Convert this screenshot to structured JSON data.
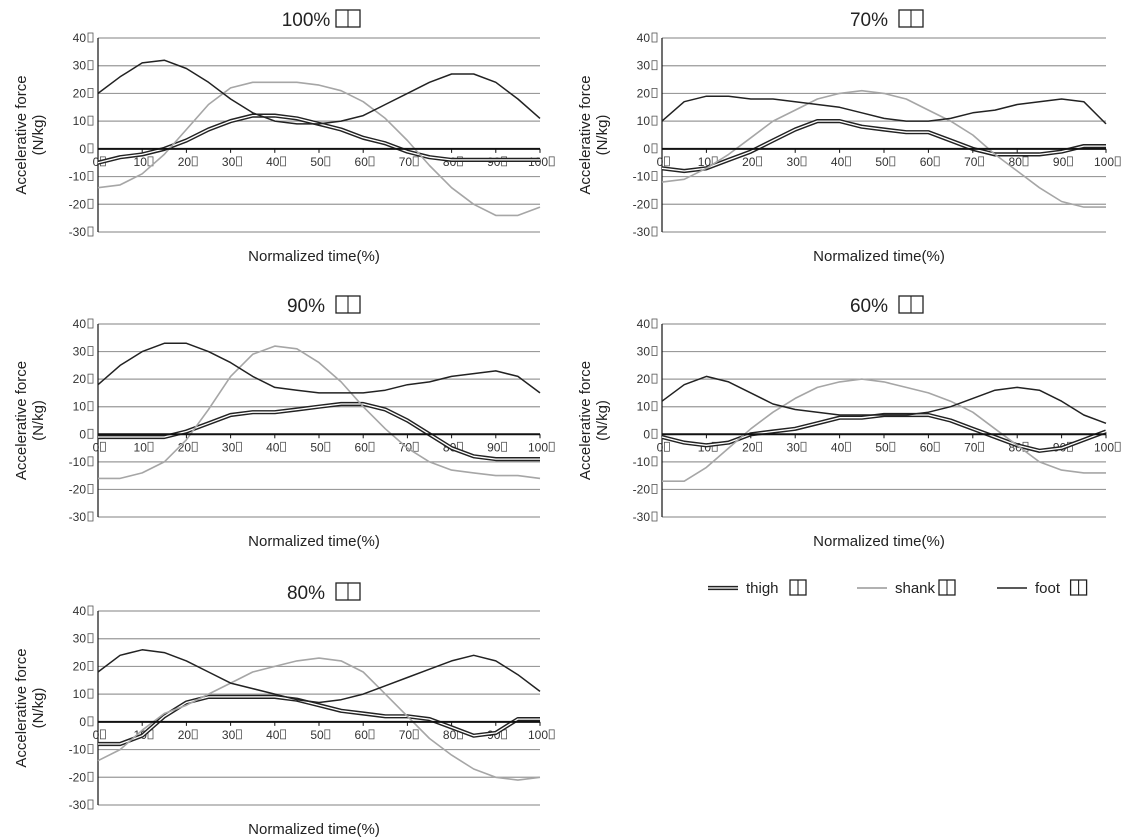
{
  "figure": {
    "legend": [
      {
        "key": "thigh",
        "label": "thigh",
        "style": "double"
      },
      {
        "key": "shank",
        "label": "shank",
        "style": "gray"
      },
      {
        "key": "foot",
        "label": "foot",
        "style": "black"
      }
    ],
    "colors": {
      "thigh": "#222222",
      "shank": "#a6a6a6",
      "foot": "#222222",
      "grid": "#9a9a9a",
      "axis": "#111111"
    }
  },
  "chart_data": [
    {
      "type": "line",
      "title": "100%",
      "xlabel": "Normalized time(%)",
      "ylabel": [
        "Accelerative force",
        "(N/kg)"
      ],
      "ylim": [
        -30,
        40
      ],
      "xlim": [
        0,
        100
      ],
      "yticks": [
        "40",
        "30",
        "20",
        "10",
        "0",
        "-10",
        "-20",
        "-30"
      ],
      "xticks": [
        "0",
        "10",
        "20",
        "30",
        "40",
        "50",
        "60",
        "70",
        "80",
        "90",
        "100"
      ],
      "x": [
        0,
        5,
        10,
        15,
        20,
        25,
        30,
        35,
        40,
        45,
        50,
        55,
        60,
        65,
        70,
        75,
        80,
        85,
        90,
        95,
        100
      ],
      "series": [
        {
          "name": "thigh",
          "values": [
            -5,
            -3,
            -2,
            0,
            3,
            7,
            10,
            12,
            12,
            11,
            9,
            7,
            4,
            2,
            -1,
            -3,
            -4,
            -4,
            -4,
            -4,
            -4
          ]
        },
        {
          "name": "shank",
          "values": [
            -14,
            -13,
            -9,
            -2,
            7,
            16,
            22,
            24,
            24,
            24,
            23,
            21,
            17,
            11,
            3,
            -6,
            -14,
            -20,
            -24,
            -24,
            -21
          ]
        },
        {
          "name": "foot",
          "values": [
            20,
            26,
            31,
            32,
            29,
            24,
            18,
            13,
            10,
            9,
            9,
            10,
            12,
            16,
            20,
            24,
            27,
            27,
            24,
            18,
            11
          ]
        }
      ]
    },
    {
      "type": "line",
      "title": "70%",
      "xlabel": "Normalized time(%)",
      "ylabel": [
        "Accelerative force",
        "(N/kg)"
      ],
      "ylim": [
        -30,
        40
      ],
      "xlim": [
        0,
        100
      ],
      "yticks": [
        "40",
        "30",
        "20",
        "10",
        "0",
        "-10",
        "-20",
        "-30"
      ],
      "xticks": [
        "0",
        "10",
        "20",
        "30",
        "40",
        "50",
        "60",
        "70",
        "80",
        "90",
        "100"
      ],
      "x": [
        0,
        5,
        10,
        15,
        20,
        25,
        30,
        35,
        40,
        45,
        50,
        55,
        60,
        65,
        70,
        75,
        80,
        85,
        90,
        95,
        100
      ],
      "series": [
        {
          "name": "thigh",
          "values": [
            -7,
            -8,
            -7,
            -4,
            -1,
            3,
            7,
            10,
            10,
            8,
            7,
            6,
            6,
            3,
            0,
            -2,
            -2,
            -2,
            -1,
            1,
            1
          ]
        },
        {
          "name": "shank",
          "values": [
            -12,
            -11,
            -7,
            -2,
            4,
            10,
            14,
            18,
            20,
            21,
            20,
            18,
            14,
            10,
            5,
            -2,
            -8,
            -14,
            -19,
            -21,
            -21
          ]
        },
        {
          "name": "foot",
          "values": [
            10,
            17,
            19,
            19,
            18,
            18,
            17,
            16,
            15,
            13,
            11,
            10,
            10,
            11,
            13,
            14,
            16,
            17,
            18,
            17,
            9
          ]
        }
      ]
    },
    {
      "type": "line",
      "title": "90%",
      "xlabel": "Normalized time(%)",
      "ylabel": [
        "Accelerative force",
        "(N/kg)"
      ],
      "ylim": [
        -30,
        40
      ],
      "xlim": [
        0,
        100
      ],
      "yticks": [
        "40",
        "30",
        "20",
        "10",
        "0",
        "-10",
        "-20",
        "-30"
      ],
      "xticks": [
        "0",
        "10",
        "20",
        "30",
        "40",
        "50",
        "60",
        "70",
        "80",
        "90",
        "100"
      ],
      "x": [
        0,
        5,
        10,
        15,
        20,
        25,
        30,
        35,
        40,
        45,
        50,
        55,
        60,
        65,
        70,
        75,
        80,
        85,
        90,
        95,
        100
      ],
      "series": [
        {
          "name": "thigh",
          "values": [
            -1,
            -1,
            -1,
            -1,
            1,
            4,
            7,
            8,
            8,
            9,
            10,
            11,
            11,
            9,
            5,
            0,
            -5,
            -8,
            -9,
            -9,
            -9
          ]
        },
        {
          "name": "shank",
          "values": [
            -16,
            -16,
            -14,
            -10,
            -2,
            9,
            21,
            29,
            32,
            31,
            26,
            19,
            10,
            2,
            -5,
            -10,
            -13,
            -14,
            -15,
            -15,
            -16
          ]
        },
        {
          "name": "foot",
          "values": [
            18,
            25,
            30,
            33,
            33,
            30,
            26,
            21,
            17,
            16,
            15,
            15,
            15,
            16,
            18,
            19,
            21,
            22,
            23,
            21,
            15
          ]
        }
      ]
    },
    {
      "type": "line",
      "title": "60%",
      "xlabel": "Normalized time(%)",
      "ylabel": [
        "Accelerative force",
        "(N/kg)"
      ],
      "ylim": [
        -30,
        40
      ],
      "xlim": [
        0,
        100
      ],
      "yticks": [
        "40",
        "30",
        "20",
        "10",
        "0",
        "-10",
        "-20",
        "-30"
      ],
      "xticks": [
        "0",
        "10",
        "20",
        "30",
        "40",
        "50",
        "60",
        "70",
        "80",
        "90",
        "100"
      ],
      "x": [
        0,
        5,
        10,
        15,
        20,
        25,
        30,
        35,
        40,
        45,
        50,
        55,
        60,
        65,
        70,
        75,
        80,
        85,
        90,
        95,
        100
      ],
      "series": [
        {
          "name": "thigh",
          "values": [
            -1,
            -3,
            -4,
            -3,
            0,
            1,
            2,
            4,
            6,
            6,
            7,
            7,
            7,
            5,
            2,
            -1,
            -4,
            -6,
            -5,
            -2,
            1
          ]
        },
        {
          "name": "shank",
          "values": [
            -17,
            -17,
            -12,
            -5,
            2,
            8,
            13,
            17,
            19,
            20,
            19,
            17,
            15,
            12,
            8,
            2,
            -4,
            -10,
            -13,
            -14,
            -14
          ]
        },
        {
          "name": "foot",
          "values": [
            12,
            18,
            21,
            19,
            15,
            11,
            9,
            8,
            7,
            7,
            7,
            7,
            8,
            10,
            13,
            16,
            17,
            16,
            12,
            7,
            4
          ]
        }
      ]
    },
    {
      "type": "line",
      "title": "80%",
      "xlabel": "Normalized time(%)",
      "ylabel": [
        "Accelerative force",
        "(N/kg)"
      ],
      "ylim": [
        -30,
        40
      ],
      "xlim": [
        0,
        100
      ],
      "yticks": [
        "40",
        "30",
        "20",
        "10",
        "0",
        "-10",
        "-20",
        "-30"
      ],
      "xticks": [
        "0",
        "10",
        "20",
        "30",
        "40",
        "50",
        "60",
        "70",
        "80",
        "90",
        "100"
      ],
      "x": [
        0,
        5,
        10,
        15,
        20,
        25,
        30,
        35,
        40,
        45,
        50,
        55,
        60,
        65,
        70,
        75,
        80,
        85,
        90,
        95,
        100
      ],
      "series": [
        {
          "name": "thigh",
          "values": [
            -8,
            -8,
            -5,
            2,
            7,
            9,
            9,
            9,
            9,
            8,
            6,
            4,
            3,
            2,
            2,
            1,
            -2,
            -5,
            -4,
            1,
            1
          ]
        },
        {
          "name": "shank",
          "values": [
            -14,
            -10,
            -3,
            3,
            6,
            10,
            14,
            18,
            20,
            22,
            23,
            22,
            18,
            10,
            2,
            -6,
            -12,
            -17,
            -20,
            -21,
            -20
          ]
        },
        {
          "name": "foot",
          "values": [
            18,
            24,
            26,
            25,
            22,
            18,
            14,
            12,
            10,
            8,
            7,
            8,
            10,
            13,
            16,
            19,
            22,
            24,
            22,
            17,
            11
          ]
        }
      ]
    }
  ]
}
